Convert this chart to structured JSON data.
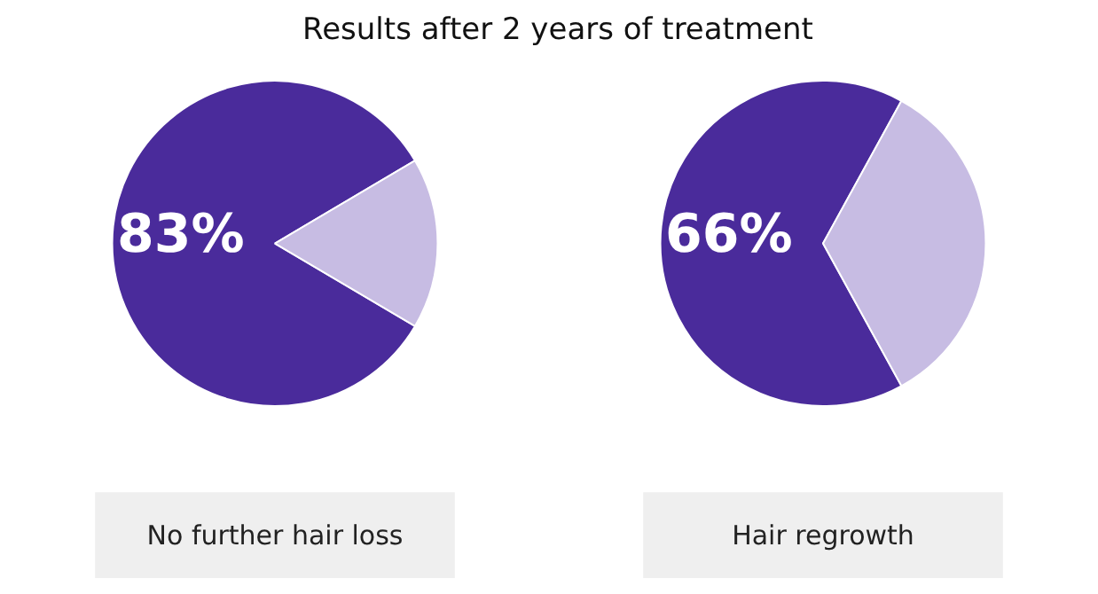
{
  "chart_data": [
    {
      "type": "pie",
      "title": "Results after 2 years of treatment",
      "xlabel": "No further hair loss",
      "categories": [
        null,
        null
      ],
      "values": [
        83,
        17
      ],
      "colors": [
        "#4a2b9b",
        "#c7bce3"
      ],
      "value_labels": [
        "83%",
        null
      ]
    },
    {
      "type": "pie",
      "xlabel": "Hair regrowth",
      "categories": [
        null,
        null
      ],
      "values": [
        66,
        34
      ],
      "colors": [
        "#4a2b9b",
        "#c7bce3"
      ],
      "value_labels": [
        "66%",
        null
      ]
    }
  ]
}
